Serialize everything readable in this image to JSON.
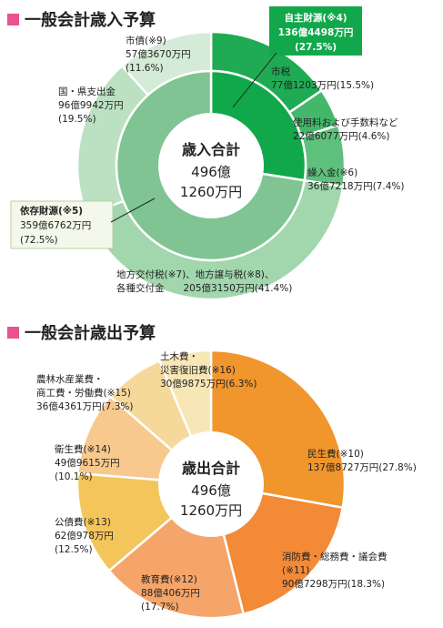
{
  "revenue": {
    "heading": "一般会計歳入予算",
    "center": {
      "title": "歳入合計",
      "line1": "496億",
      "line2": "1260万円"
    },
    "chart_data": {
      "type": "pie",
      "inner": [
        {
          "name": "自主財源(※4)",
          "amount": "136億4498万円",
          "pct_label": "(27.5%)",
          "value": 27.5,
          "color": "#11a84b"
        },
        {
          "name": "依存財源(※5)",
          "amount": "359億6762万円",
          "pct_label": "(72.5%)",
          "value": 72.5,
          "color": "#7fc492"
        }
      ],
      "outer": [
        {
          "name": "市税",
          "label_lines": [
            "市税",
            "77億1203万円(15.5%)"
          ],
          "value": 15.5,
          "color": "#1faa54"
        },
        {
          "name": "使用料および手数料など",
          "label_lines": [
            "使用料および手数料など",
            "22億6077万円(4.6%)"
          ],
          "value": 4.6,
          "color": "#43b86b"
        },
        {
          "name": "繰入金(※6)",
          "label_lines": [
            "繰入金(※6)",
            "36億7218万円(7.4%)"
          ],
          "value": 7.4,
          "color": "#5fc07d"
        },
        {
          "name": "地方交付税(※7)、地方譲与税(※8)、各種交付金",
          "label_lines": [
            "地方交付税(※7)、地方譲与税(※8)、",
            "各種交付金　　205億3150万円(41.4%)"
          ],
          "value": 41.4,
          "color": "#a2d6ad"
        },
        {
          "name": "国・県支出金",
          "label_lines": [
            "国・県支出金",
            "96億9942万円",
            "(19.5%)"
          ],
          "value": 19.5,
          "color": "#bbe0c2"
        },
        {
          "name": "市債(※9)",
          "label_lines": [
            "市債(※9)",
            "57億3670万円",
            "(11.6%)"
          ],
          "value": 11.6,
          "color": "#d4ebd7"
        }
      ]
    }
  },
  "expenditure": {
    "heading": "一般会計歳出予算",
    "center": {
      "title": "歳出合計",
      "line1": "496億",
      "line2": "1260万円"
    },
    "chart_data": {
      "type": "pie",
      "slices": [
        {
          "name": "民生費(※10)",
          "label_lines": [
            "民生費(※10)",
            "137億8727万円(27.8%)"
          ],
          "value": 27.8,
          "color": "#f0962d"
        },
        {
          "name": "消防費・総務費・議会費(※11)",
          "label_lines": [
            "消防費・総務費・議会費",
            "(※11)",
            "90億7298万円(18.3%)"
          ],
          "value": 18.3,
          "color": "#f28a38"
        },
        {
          "name": "教育費(※12)",
          "label_lines": [
            "教育費(※12)",
            "88億406万円",
            "(17.7%)"
          ],
          "value": 17.7,
          "color": "#f5a56a"
        },
        {
          "name": "公債費(※13)",
          "label_lines": [
            "公債費(※13)",
            "62億978万円",
            "(12.5%)"
          ],
          "value": 12.5,
          "color": "#f4c55a"
        },
        {
          "name": "衛生費(※14)",
          "label_lines": [
            "衛生費(※14)",
            "49億9615万円",
            "(10.1%)"
          ],
          "value": 10.1,
          "color": "#f7c98e"
        },
        {
          "name": "農林水産業費・商工費・労働費(※15)",
          "label_lines": [
            "農林水産業費・",
            "商工費・労働費(※15)",
            "36億4361万円(7.3%)"
          ],
          "value": 7.3,
          "color": "#f6d89a"
        },
        {
          "name": "土木費・災害復旧費(※16)",
          "label_lines": [
            "土木費・",
            "災害復旧費(※16)",
            "30億9875万円(6.3%)"
          ],
          "value": 6.3,
          "color": "#f7e6b6"
        }
      ]
    }
  }
}
